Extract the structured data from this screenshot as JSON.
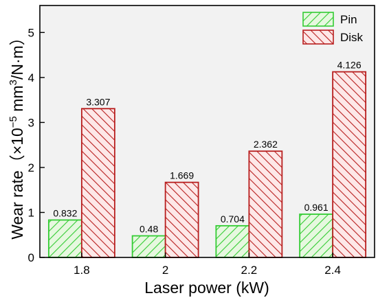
{
  "chart_data": {
    "type": "bar",
    "categories": [
      "1.8",
      "2",
      "2.2",
      "2.4"
    ],
    "series": [
      {
        "name": "Pin",
        "values": [
          0.832,
          0.48,
          0.704,
          0.961
        ],
        "color": "#33cc33",
        "fill": "#d9f5d0"
      },
      {
        "name": "Disk",
        "values": [
          3.307,
          1.669,
          2.362,
          4.126
        ],
        "color": "#b81e1e",
        "fill": "#fbe1e1"
      }
    ],
    "data_labels": {
      "Pin": [
        "0.832",
        "0.48",
        "0.704",
        "0.961"
      ],
      "Disk": [
        "3.307",
        "1.669",
        "2.362",
        "4.126"
      ]
    },
    "xlabel": "Laser power (kW)",
    "ylabel_main": "Wear rate（×10",
    "ylabel_exp1": "−5",
    "ylabel_mid": " mm",
    "ylabel_exp2": "3",
    "ylabel_end": "/N·m）",
    "ylim": [
      0,
      5.6
    ],
    "yticks": [
      "0",
      "1",
      "2",
      "3",
      "4",
      "5"
    ],
    "grid": false,
    "legend_position": "top-right",
    "plot_background": "#f2f2f2"
  }
}
